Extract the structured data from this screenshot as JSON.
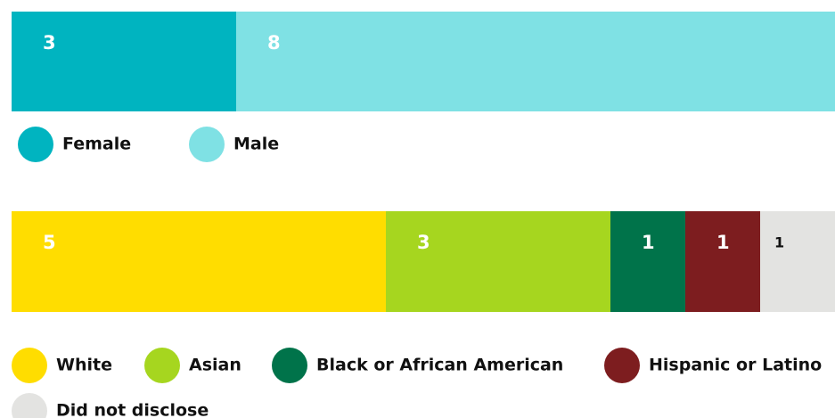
{
  "chart_data": [
    {
      "type": "bar",
      "stacked": true,
      "orientation": "horizontal",
      "series": [
        {
          "name": "Female",
          "color": "#00b4c0",
          "values": [
            3
          ]
        },
        {
          "name": "Male",
          "color": "#7fe1e4",
          "values": [
            8
          ]
        }
      ]
    },
    {
      "type": "bar",
      "stacked": true,
      "orientation": "horizontal",
      "series": [
        {
          "name": "White",
          "color": "#ffdd00",
          "values": [
            5
          ]
        },
        {
          "name": "Asian",
          "color": "#a6d61f",
          "values": [
            3
          ]
        },
        {
          "name": "Black or African American",
          "color": "#00734a",
          "values": [
            1
          ]
        },
        {
          "name": "Hispanic or Latino",
          "color": "#7d1d1f",
          "values": [
            1
          ]
        },
        {
          "name": "Did not disclose",
          "color": "#e3e3e1",
          "values": [
            1
          ]
        }
      ]
    }
  ]
}
